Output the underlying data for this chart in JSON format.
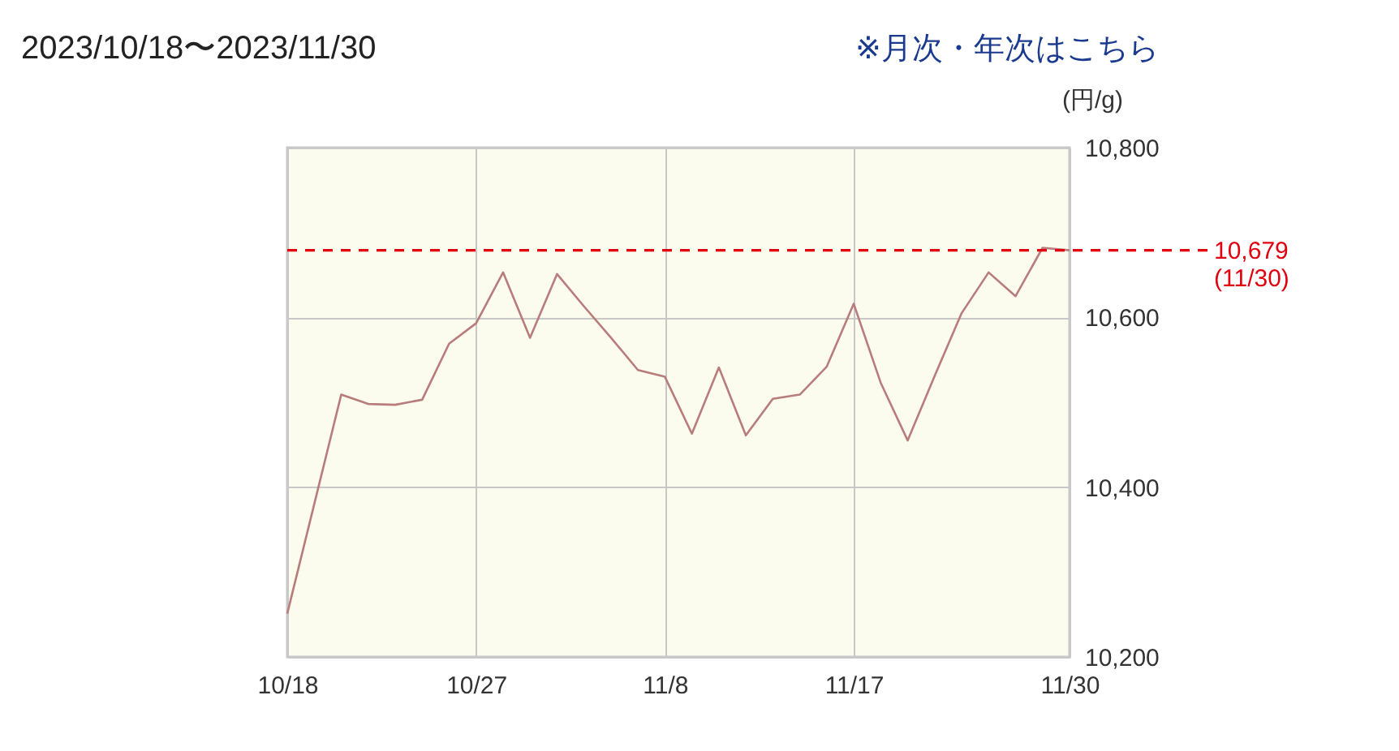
{
  "chart_data": {
    "type": "line",
    "title": "2023/10/18〜2023/11/30",
    "ylabel": "(円/g)",
    "annotations": [
      "※月次・年次はこちら"
    ],
    "categories": [
      "10/18",
      null,
      null,
      null,
      null,
      null,
      null,
      "10/27",
      null,
      null,
      null,
      null,
      null,
      null,
      "11/8",
      null,
      null,
      null,
      null,
      null,
      null,
      "11/17",
      null,
      null,
      null,
      null,
      null,
      null,
      null,
      "11/30"
    ],
    "series": [
      {
        "color": "#b87c7c",
        "values": [
          10251,
          10380,
          10509,
          10498,
          10497,
          10503,
          10569,
          10593,
          10653,
          10576,
          10651,
          10613,
          10576,
          10538,
          10530,
          10463,
          10541,
          10461,
          10504,
          10509,
          10542,
          10616,
          10523,
          10455,
          10531,
          10605,
          10653,
          10625,
          10682,
          10679
        ]
      }
    ],
    "ylim": [
      10200,
      10800
    ],
    "yticks": [
      {
        "value": 10200,
        "label": "10,200"
      },
      {
        "value": 10400,
        "label": "10,400"
      },
      {
        "value": 10600,
        "label": "10,600"
      },
      {
        "value": 10800,
        "label": "10,800"
      }
    ],
    "grid": true,
    "ref_lines": [
      {
        "axis": "y",
        "value": 10679,
        "label": "10,679\n(11/30)",
        "color": "#e00010",
        "line_style": "dashed"
      }
    ]
  }
}
